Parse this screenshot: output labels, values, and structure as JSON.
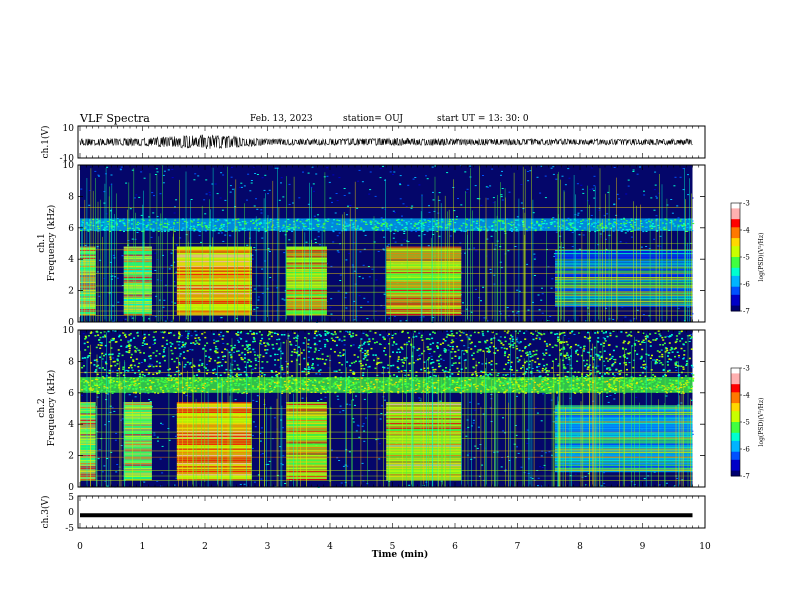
{
  "header": {
    "title": "VLF Spectra",
    "date": "Feb. 13, 2023",
    "station": "station= OUJ",
    "start": "start  UT  =   13: 30: 0"
  },
  "colors": {
    "spectrogram_background": "#04066a",
    "colormap": [
      "#000070",
      "#0000c8",
      "#0050ff",
      "#00b4ff",
      "#00ffd0",
      "#40ff40",
      "#c8ff00",
      "#ffd800",
      "#ff7800",
      "#ff0000",
      "#ffb0b0",
      "#ffffff"
    ]
  },
  "chart_data": [
    {
      "type": "line",
      "name": "ch1-waveform",
      "ylabel": "ch.1(V)",
      "ylim": [
        -10,
        10
      ],
      "yticks": [
        "10",
        "-10"
      ],
      "x_range_min": [
        0,
        9.8
      ],
      "amplitude_envelope": [
        {
          "t": 0.0,
          "amp": 2.0
        },
        {
          "t": 0.6,
          "amp": 2.2
        },
        {
          "t": 1.0,
          "amp": 2.6
        },
        {
          "t": 1.5,
          "amp": 3.5
        },
        {
          "t": 2.0,
          "amp": 4.5
        },
        {
          "t": 2.5,
          "amp": 3.5
        },
        {
          "t": 3.0,
          "amp": 2.0
        },
        {
          "t": 4.0,
          "amp": 2.0
        },
        {
          "t": 5.0,
          "amp": 2.4
        },
        {
          "t": 6.0,
          "amp": 2.0
        },
        {
          "t": 8.0,
          "amp": 1.8
        },
        {
          "t": 9.8,
          "amp": 1.8
        }
      ]
    },
    {
      "type": "heatmap",
      "name": "ch1-spectrogram",
      "ylabel_channel": "ch.1",
      "ylabel": "Frequency (kHz)",
      "ylim": [
        0,
        10
      ],
      "yticks": [
        "0",
        "2",
        "4",
        "6",
        "8",
        "10"
      ],
      "x_range_min": [
        0,
        9.8
      ],
      "background_level": -6.3,
      "broadband_band": {
        "fmin": 5.8,
        "fmax": 6.6,
        "level": -5.5
      },
      "pulse_blocks": [
        {
          "tmin": 0.0,
          "tmax": 0.25,
          "fmin": 0.5,
          "fmax": 4.8,
          "level": -4.5
        },
        {
          "tmin": 0.7,
          "tmax": 1.15,
          "fmin": 0.5,
          "fmax": 4.8,
          "level": -4.6
        },
        {
          "tmin": 1.55,
          "tmax": 2.75,
          "fmin": 0.5,
          "fmax": 4.8,
          "level": -4.1
        },
        {
          "tmin": 3.3,
          "tmax": 3.95,
          "fmin": 0.5,
          "fmax": 4.8,
          "level": -4.4
        },
        {
          "tmin": 4.9,
          "tmax": 6.1,
          "fmin": 0.5,
          "fmax": 4.8,
          "level": -4.3
        },
        {
          "tmin": 7.6,
          "tmax": 9.8,
          "fmin": 1.0,
          "fmax": 4.6,
          "level": -5.6
        }
      ],
      "colorbar": {
        "label": "log(PSD)(V²/Hz)",
        "range": [
          -7,
          -3
        ],
        "ticks": [
          "-3",
          "-4",
          "-5",
          "-6",
          "-7"
        ]
      }
    },
    {
      "type": "heatmap",
      "name": "ch2-spectrogram",
      "ylabel_channel": "ch.2",
      "ylabel": "Frequency (kHz)",
      "ylim": [
        0,
        10
      ],
      "yticks": [
        "0",
        "2",
        "4",
        "6",
        "8",
        "10"
      ],
      "x_range_min": [
        0,
        9.8
      ],
      "background_level": -6.2,
      "upper_band": {
        "fmin": 6.2,
        "fmax": 10,
        "level": -5.2
      },
      "broadband_band": {
        "fmin": 6.0,
        "fmax": 7.0,
        "level": -4.9
      },
      "pulse_blocks": [
        {
          "tmin": 0.0,
          "tmax": 0.25,
          "fmin": 0.5,
          "fmax": 5.4,
          "level": -4.5
        },
        {
          "tmin": 0.7,
          "tmax": 1.15,
          "fmin": 0.5,
          "fmax": 5.4,
          "level": -4.6
        },
        {
          "tmin": 1.55,
          "tmax": 2.75,
          "fmin": 0.5,
          "fmax": 5.4,
          "level": -4.1
        },
        {
          "tmin": 3.3,
          "tmax": 3.95,
          "fmin": 0.5,
          "fmax": 5.4,
          "level": -4.4
        },
        {
          "tmin": 4.9,
          "tmax": 6.1,
          "fmin": 0.5,
          "fmax": 5.4,
          "level": -4.3
        },
        {
          "tmin": 7.6,
          "tmax": 9.8,
          "fmin": 1.0,
          "fmax": 5.2,
          "level": -5.5
        }
      ],
      "colorbar": {
        "label": "log(PSD)(V²/Hz)",
        "range": [
          -7,
          -3
        ],
        "ticks": [
          "-3",
          "-4",
          "-5",
          "-6",
          "-7"
        ]
      }
    },
    {
      "type": "line",
      "name": "ch3-waveform",
      "ylabel": "ch.3(V)",
      "ylim": [
        -5,
        5
      ],
      "yticks": [
        "5",
        "0",
        "-5"
      ],
      "x_range_min": [
        0,
        9.8
      ],
      "constant_value": -1.0
    }
  ],
  "xaxis": {
    "label": "Time (min)",
    "range": [
      0,
      10
    ],
    "ticks": [
      "0",
      "1",
      "2",
      "3",
      "4",
      "5",
      "6",
      "7",
      "8",
      "9",
      "10"
    ]
  }
}
